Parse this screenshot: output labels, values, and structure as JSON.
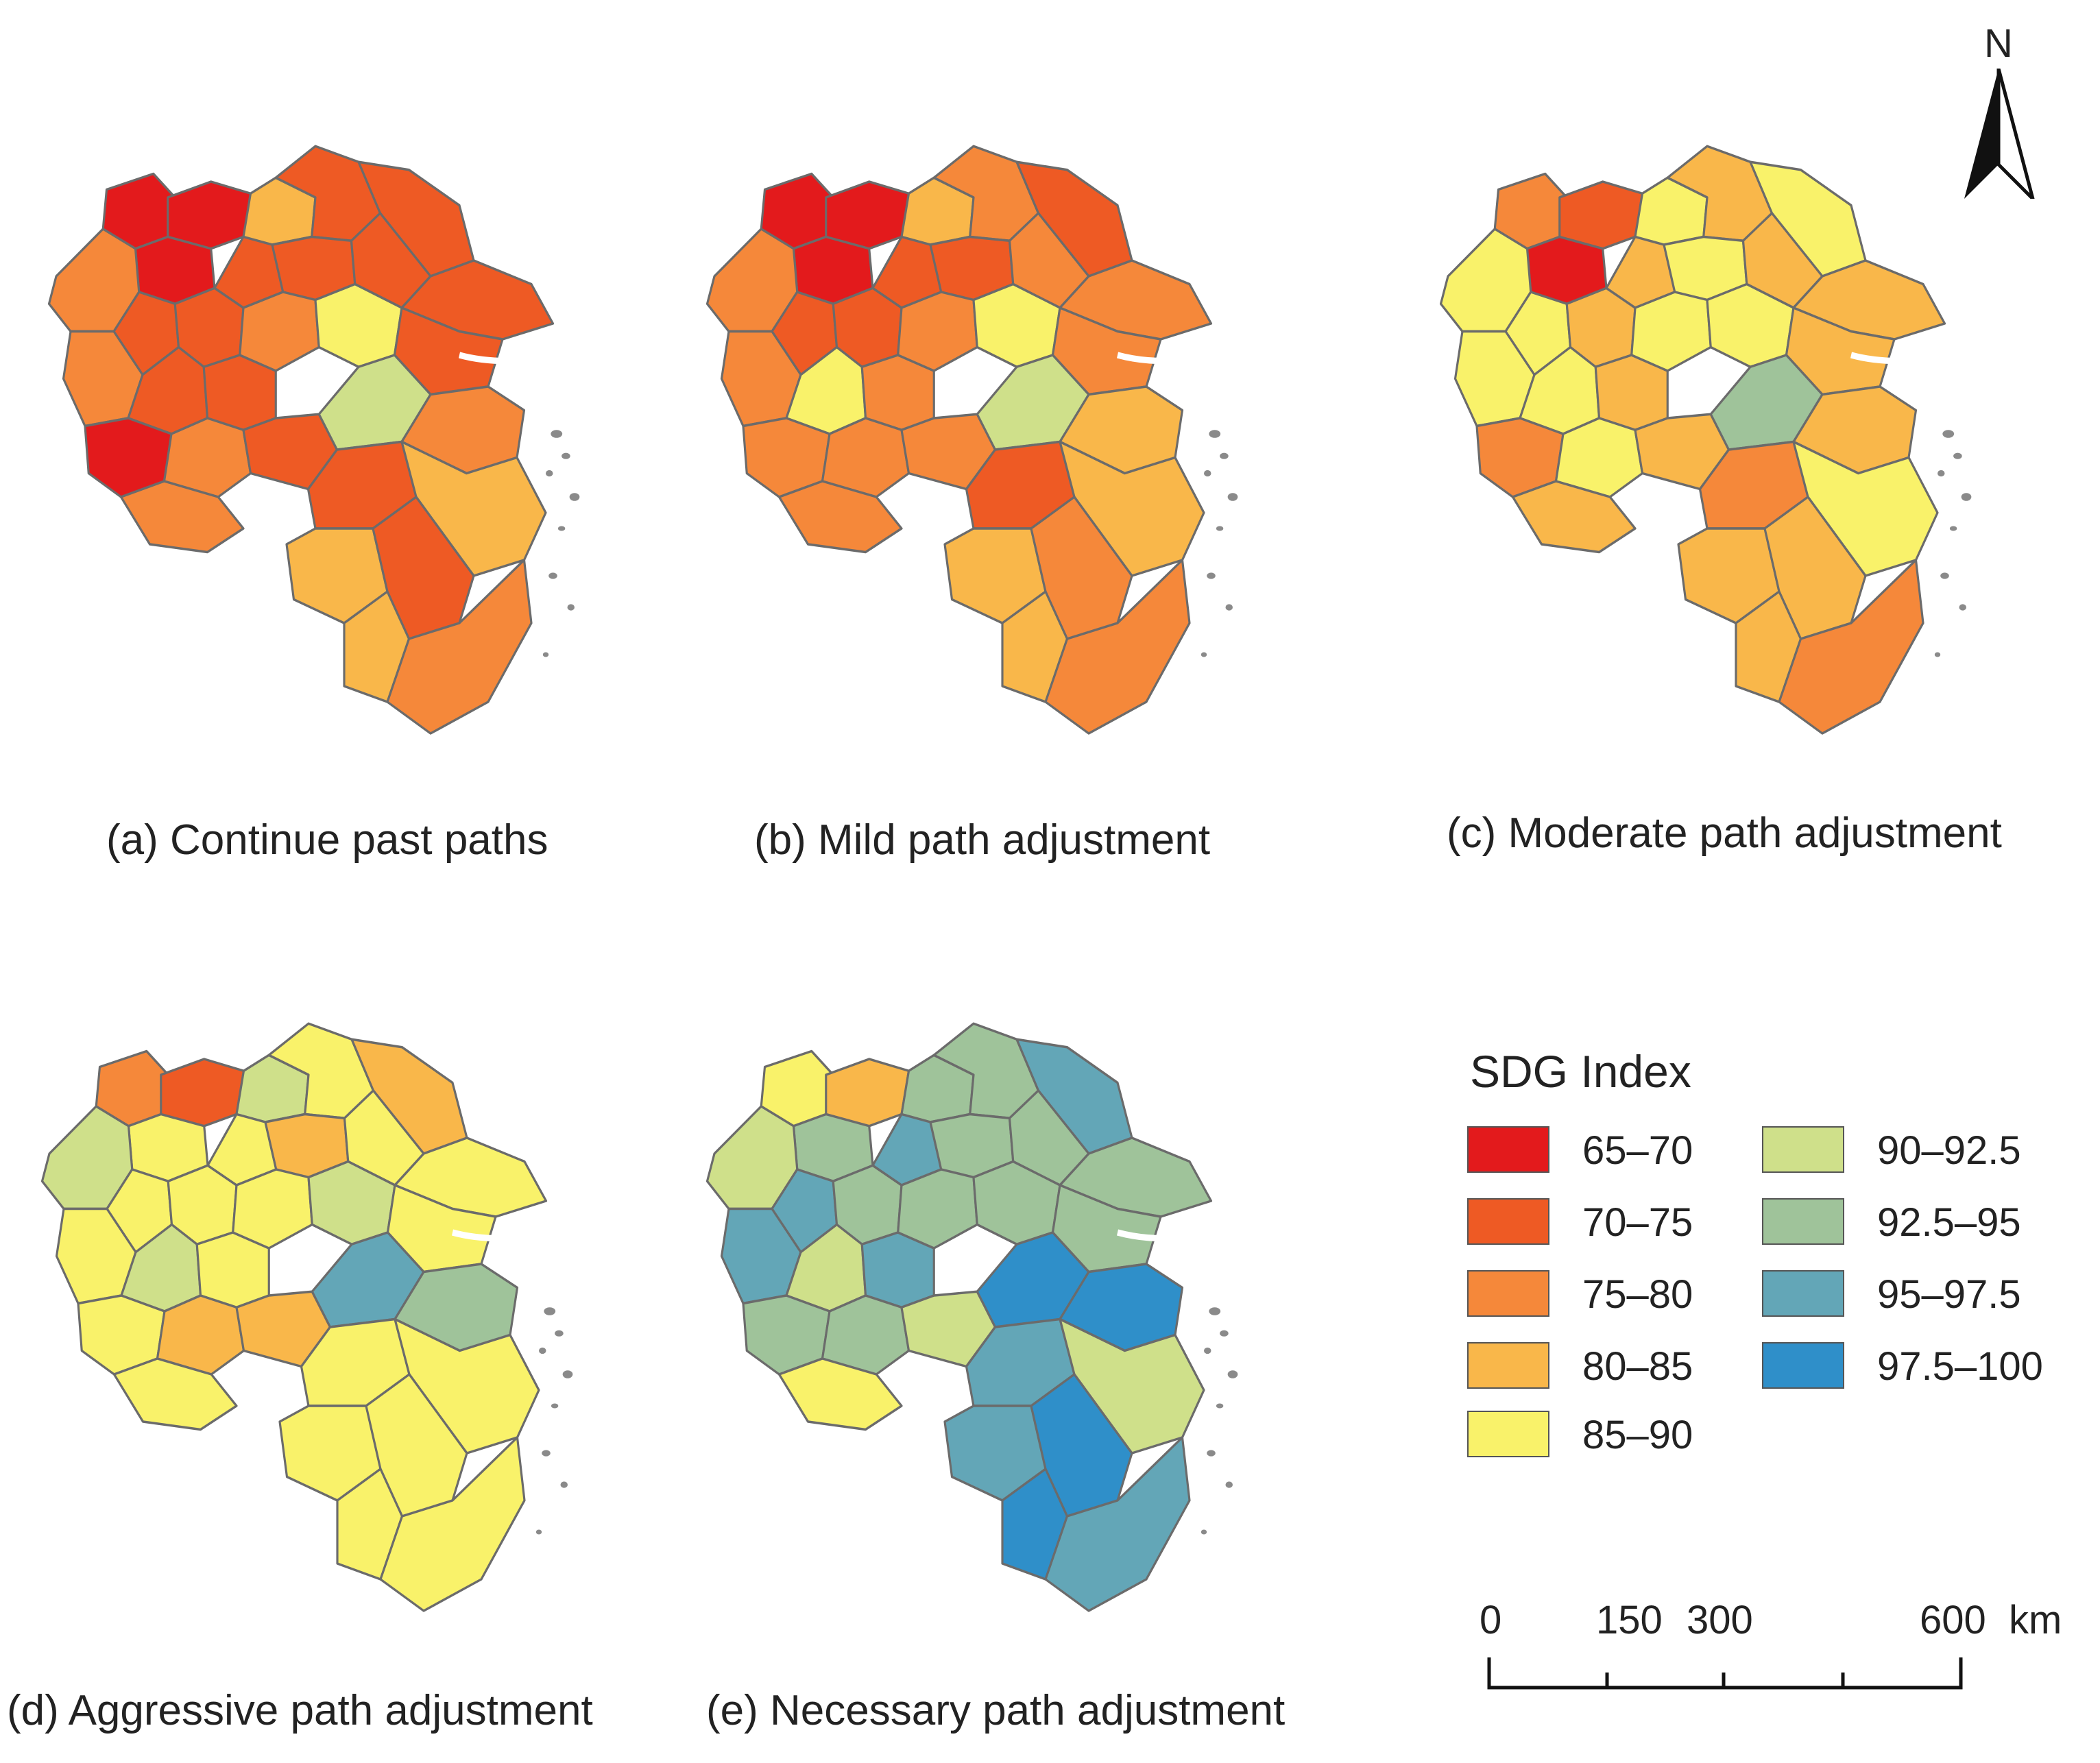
{
  "legend": {
    "title": "SDG Index",
    "items": [
      {
        "label": "65–70",
        "color": "#e31a1c"
      },
      {
        "label": "70–75",
        "color": "#ee5a24"
      },
      {
        "label": "75–80",
        "color": "#f5883a"
      },
      {
        "label": "80–85",
        "color": "#f9b74a"
      },
      {
        "label": "85–90",
        "color": "#f9f26a"
      },
      {
        "label": "90–92.5",
        "color": "#cfe08a"
      },
      {
        "label": "92.5–95",
        "color": "#9fc39a"
      },
      {
        "label": "95–97.5",
        "color": "#63a6b7"
      },
      {
        "label": "97.5–100",
        "color": "#2f8fc9"
      }
    ]
  },
  "north_arrow": {
    "letter": "N"
  },
  "scale_bar": {
    "labels": [
      "0",
      "150",
      "300",
      "600"
    ],
    "unit": "km"
  },
  "maps": [
    {
      "caption": "(a) Continue past paths",
      "region_colors": [
        "#e31a1c",
        "#e31a1c",
        "#e31a1c",
        "#f9b74a",
        "#ee5a24",
        "#ee5a24",
        "#f5883a",
        "#ee5a24",
        "#ee5a24",
        "#ee5a24",
        "#ee5a24",
        "#ee5a24",
        "#ee5a24",
        "#f5883a",
        "#ee5a24",
        "#ee5a24",
        "#f5883a",
        "#f9f26a",
        "#ee5a24",
        "#e31a1c",
        "#f5883a",
        "#ee5a24",
        "#f5883a",
        "#cfe08a",
        "#f5883a",
        "#ee5a24",
        "#f9b74a",
        "#f9b74a",
        "#ee5a24",
        "#f9b74a",
        "#f5883a"
      ]
    },
    {
      "caption": "(b) Mild path adjustment",
      "region_colors": [
        "#e31a1c",
        "#e31a1c",
        "#e31a1c",
        "#f9b74a",
        "#f5883a",
        "#ee5a24",
        "#f5883a",
        "#ee5a24",
        "#ee5a24",
        "#ee5a24",
        "#ee5a24",
        "#f5883a",
        "#f5883a",
        "#f5883a",
        "#f9f26a",
        "#f5883a",
        "#f5883a",
        "#f9f26a",
        "#f5883a",
        "#f5883a",
        "#f5883a",
        "#f5883a",
        "#f5883a",
        "#cfe08a",
        "#f9b74a",
        "#ee5a24",
        "#f9b74a",
        "#f9b74a",
        "#f5883a",
        "#f9b74a",
        "#f5883a"
      ]
    },
    {
      "caption": "(c) Moderate path adjustment",
      "region_colors": [
        "#f5883a",
        "#ee5a24",
        "#e31a1c",
        "#f9f26a",
        "#f9b74a",
        "#f9f26a",
        "#f9f26a",
        "#f9f26a",
        "#f9b74a",
        "#f9b74a",
        "#f9f26a",
        "#f9b74a",
        "#f9b74a",
        "#f9f26a",
        "#f9f26a",
        "#f9b74a",
        "#f9f26a",
        "#f9f26a",
        "#f9b74a",
        "#f5883a",
        "#f9f26a",
        "#f9b74a",
        "#f9b74a",
        "#9fc39a",
        "#f9b74a",
        "#f5883a",
        "#f9f26a",
        "#f9b74a",
        "#f9b74a",
        "#f9b74a",
        "#f5883a"
      ]
    },
    {
      "caption": "(d) Aggressive path adjustment",
      "region_colors": [
        "#f5883a",
        "#ee5a24",
        "#f9f26a",
        "#cfe08a",
        "#f9f26a",
        "#f9b74a",
        "#cfe08a",
        "#f9f26a",
        "#f9f26a",
        "#f9f26a",
        "#f9b74a",
        "#f9f26a",
        "#f9f26a",
        "#f9f26a",
        "#cfe08a",
        "#f9f26a",
        "#f9f26a",
        "#cfe08a",
        "#f9f26a",
        "#f9f26a",
        "#f9b74a",
        "#f9b74a",
        "#f9f26a",
        "#63a6b7",
        "#9fc39a",
        "#f9f26a",
        "#f9f26a",
        "#f9f26a",
        "#f9f26a",
        "#f9f26a",
        "#f9f26a"
      ]
    },
    {
      "caption": "(e) Necessary path adjustment",
      "region_colors": [
        "#f9f26a",
        "#f9b74a",
        "#9fc39a",
        "#9fc39a",
        "#9fc39a",
        "#63a6b7",
        "#cfe08a",
        "#63a6b7",
        "#9fc39a",
        "#63a6b7",
        "#9fc39a",
        "#9fc39a",
        "#9fc39a",
        "#63a6b7",
        "#cfe08a",
        "#63a6b7",
        "#9fc39a",
        "#9fc39a",
        "#9fc39a",
        "#9fc39a",
        "#9fc39a",
        "#cfe08a",
        "#f9f26a",
        "#2f8fc9",
        "#2f8fc9",
        "#63a6b7",
        "#cfe08a",
        "#63a6b7",
        "#2f8fc9",
        "#2f8fc9",
        "#63a6b7"
      ]
    }
  ]
}
